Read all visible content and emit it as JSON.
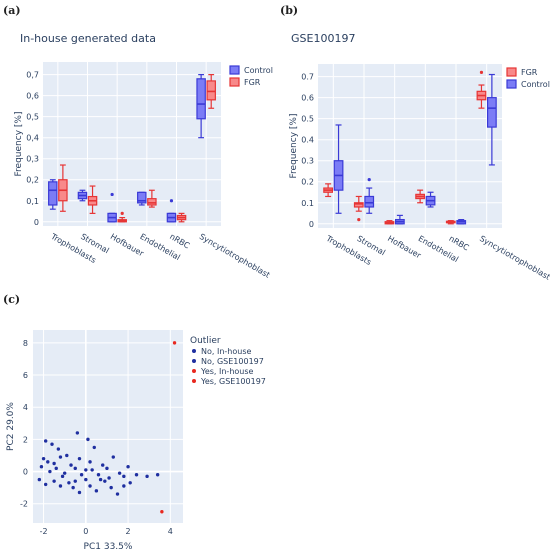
{
  "panel_labels": [
    "(a)",
    "(b)",
    "(c)"
  ],
  "colors": {
    "control_fill": "#7b7cf6",
    "control_line": "#3a3ad6",
    "fgr_fill": "#f8898a",
    "fgr_line": "#e63535",
    "plot_bg": "#e5ecf6",
    "grid": "#ffffff",
    "no_marker": "#1f2fa0",
    "yes_marker": "#e8281f"
  },
  "chart_data": [
    {
      "type": "box",
      "title": "In-house generated data",
      "ylabel": "Frequency [%]",
      "xlabel": "",
      "ylim": [
        -0.02,
        0.76
      ],
      "yticks": [
        0,
        0.1,
        0.2,
        0.3,
        0.4,
        0.5,
        0.6,
        0.7
      ],
      "ytick_labels": [
        "0",
        "0,1",
        "0,2",
        "0,3",
        "0,4",
        "0,5",
        "0,6",
        "0,7"
      ],
      "categories": [
        "Trophoblasts",
        "Stromal",
        "Hofbauer",
        "Endothelial",
        "nRBC",
        "Syncytiotrophoblast"
      ],
      "legend_position": "top-right",
      "series": [
        {
          "name": "Control",
          "color_key": "control",
          "boxes": [
            {
              "min": 0.06,
              "q1": 0.08,
              "median": 0.15,
              "q3": 0.19,
              "max": 0.2,
              "outliers": []
            },
            {
              "min": 0.1,
              "q1": 0.11,
              "median": 0.125,
              "q3": 0.14,
              "max": 0.15,
              "outliers": []
            },
            {
              "min": 0.0,
              "q1": 0.0,
              "median": 0.02,
              "q3": 0.04,
              "max": 0.04,
              "outliers": [
                0.13
              ]
            },
            {
              "min": 0.08,
              "q1": 0.09,
              "median": 0.1,
              "q3": 0.14,
              "max": 0.14,
              "outliers": []
            },
            {
              "min": 0.0,
              "q1": 0.0,
              "median": 0.02,
              "q3": 0.04,
              "max": 0.04,
              "outliers": [
                0.1
              ]
            },
            {
              "min": 0.4,
              "q1": 0.49,
              "median": 0.56,
              "q3": 0.68,
              "max": 0.7,
              "outliers": []
            }
          ]
        },
        {
          "name": "FGR",
          "color_key": "fgr",
          "boxes": [
            {
              "min": 0.05,
              "q1": 0.1,
              "median": 0.15,
              "q3": 0.2,
              "max": 0.27,
              "outliers": []
            },
            {
              "min": 0.04,
              "q1": 0.08,
              "median": 0.1,
              "q3": 0.12,
              "max": 0.17,
              "outliers": []
            },
            {
              "min": 0.0,
              "q1": 0.0,
              "median": 0.005,
              "q3": 0.01,
              "max": 0.02,
              "outliers": [
                0.04
              ]
            },
            {
              "min": 0.07,
              "q1": 0.08,
              "median": 0.09,
              "q3": 0.11,
              "max": 0.15,
              "outliers": []
            },
            {
              "min": 0.0,
              "q1": 0.01,
              "median": 0.02,
              "q3": 0.03,
              "max": 0.04,
              "outliers": []
            },
            {
              "min": 0.54,
              "q1": 0.58,
              "median": 0.62,
              "q3": 0.67,
              "max": 0.7,
              "outliers": []
            }
          ]
        }
      ]
    },
    {
      "type": "box",
      "title": "GSE100197",
      "ylabel": "Frequency [%]",
      "xlabel": "",
      "ylim": [
        -0.02,
        0.76
      ],
      "yticks": [
        0,
        0.1,
        0.2,
        0.3,
        0.4,
        0.5,
        0.6,
        0.7
      ],
      "ytick_labels": [
        "0",
        "0.1",
        "0.2",
        "0.3",
        "0.4",
        "0.5",
        "0.6",
        "0.7"
      ],
      "categories": [
        "Trophoblasts",
        "Stromal",
        "Hofbauer",
        "Endothelial",
        "nRBC",
        "Syncytiotrophoblast"
      ],
      "legend_position": "top-right",
      "series": [
        {
          "name": "FGR",
          "color_key": "fgr",
          "boxes": [
            {
              "min": 0.13,
              "q1": 0.15,
              "median": 0.16,
              "q3": 0.17,
              "max": 0.19,
              "outliers": []
            },
            {
              "min": 0.06,
              "q1": 0.08,
              "median": 0.095,
              "q3": 0.1,
              "max": 0.13,
              "outliers": [
                0.02
              ]
            },
            {
              "min": 0.0,
              "q1": 0.0,
              "median": 0.005,
              "q3": 0.01,
              "max": 0.015,
              "outliers": []
            },
            {
              "min": 0.1,
              "q1": 0.12,
              "median": 0.13,
              "q3": 0.14,
              "max": 0.16,
              "outliers": []
            },
            {
              "min": 0.0,
              "q1": 0.005,
              "median": 0.008,
              "q3": 0.012,
              "max": 0.015,
              "outliers": []
            },
            {
              "min": 0.55,
              "q1": 0.59,
              "median": 0.61,
              "q3": 0.63,
              "max": 0.66,
              "outliers": [
                0.72
              ]
            }
          ]
        },
        {
          "name": "Control",
          "color_key": "control",
          "boxes": [
            {
              "min": 0.05,
              "q1": 0.16,
              "median": 0.23,
              "q3": 0.3,
              "max": 0.47,
              "outliers": []
            },
            {
              "min": 0.05,
              "q1": 0.08,
              "median": 0.1,
              "q3": 0.13,
              "max": 0.17,
              "outliers": [
                0.21
              ]
            },
            {
              "min": 0.0,
              "q1": 0.0,
              "median": 0.01,
              "q3": 0.02,
              "max": 0.04,
              "outliers": []
            },
            {
              "min": 0.08,
              "q1": 0.09,
              "median": 0.11,
              "q3": 0.13,
              "max": 0.15,
              "outliers": []
            },
            {
              "min": 0.0,
              "q1": 0.0,
              "median": 0.01,
              "q3": 0.015,
              "max": 0.02,
              "outliers": []
            },
            {
              "min": 0.28,
              "q1": 0.46,
              "median": 0.55,
              "q3": 0.6,
              "max": 0.71,
              "outliers": []
            }
          ]
        }
      ]
    },
    {
      "type": "scatter",
      "title": "",
      "xlabel": "PC1 33.5%",
      "ylabel": "PC2 29.0%",
      "xlim": [
        -2.5,
        4.6
      ],
      "ylim": [
        -3.2,
        8.8
      ],
      "xticks": [
        -2,
        0,
        2,
        4
      ],
      "yticks": [
        -2,
        0,
        2,
        4,
        6,
        8
      ],
      "legend_title": "Outlier",
      "legend_position": "top-right",
      "series": [
        {
          "name": "No, In-house",
          "color_key": "no_marker",
          "points": [
            [
              -1.9,
              1.9
            ],
            [
              -1.6,
              1.7
            ],
            [
              -1.3,
              1.4
            ],
            [
              -1.8,
              0.6
            ],
            [
              -1.5,
              0.5
            ],
            [
              -1.2,
              0.9
            ],
            [
              -0.9,
              1.0
            ],
            [
              -0.4,
              2.4
            ],
            [
              0.1,
              2.0
            ],
            [
              0.4,
              1.5
            ],
            [
              -0.3,
              0.8
            ],
            [
              0.2,
              0.6
            ],
            [
              0.8,
              0.4
            ],
            [
              1.3,
              0.9
            ],
            [
              -2.1,
              0.3
            ],
            [
              -1.7,
              0.0
            ],
            [
              -1.0,
              -0.1
            ],
            [
              -0.5,
              0.2
            ],
            [
              0.0,
              0.1
            ],
            [
              0.6,
              -0.2
            ],
            [
              1.1,
              -0.4
            ],
            [
              1.8,
              -0.3
            ],
            [
              2.4,
              -0.2
            ]
          ]
        },
        {
          "name": "No, GSE100197",
          "color_key": "no_marker",
          "points": [
            [
              -2.2,
              -0.5
            ],
            [
              -1.9,
              -0.8
            ],
            [
              -1.5,
              -0.6
            ],
            [
              -1.2,
              -0.9
            ],
            [
              -0.8,
              -0.7
            ],
            [
              -0.6,
              -1.0
            ],
            [
              -0.3,
              -1.3
            ],
            [
              0.0,
              -0.5
            ],
            [
              0.2,
              -0.9
            ],
            [
              0.5,
              -1.2
            ],
            [
              0.9,
              -0.6
            ],
            [
              1.2,
              -1.0
            ],
            [
              1.5,
              -1.4
            ],
            [
              1.8,
              -0.9
            ],
            [
              2.1,
              -0.7
            ],
            [
              2.9,
              -0.3
            ],
            [
              3.4,
              -0.2
            ],
            [
              -1.4,
              0.2
            ],
            [
              -0.7,
              0.4
            ],
            [
              0.3,
              0.1
            ],
            [
              1.0,
              0.2
            ],
            [
              -1.1,
              -0.3
            ],
            [
              -0.2,
              -0.2
            ],
            [
              0.7,
              -0.5
            ],
            [
              1.6,
              -0.1
            ],
            [
              2.0,
              0.3
            ],
            [
              -2.0,
              0.8
            ],
            [
              -0.5,
              -0.6
            ]
          ]
        },
        {
          "name": "Yes, In-house",
          "color_key": "yes_marker",
          "points": [
            [
              4.2,
              8.0
            ]
          ]
        },
        {
          "name": "Yes, GSE100197",
          "color_key": "yes_marker",
          "points": [
            [
              3.6,
              -2.5
            ]
          ]
        }
      ]
    }
  ]
}
